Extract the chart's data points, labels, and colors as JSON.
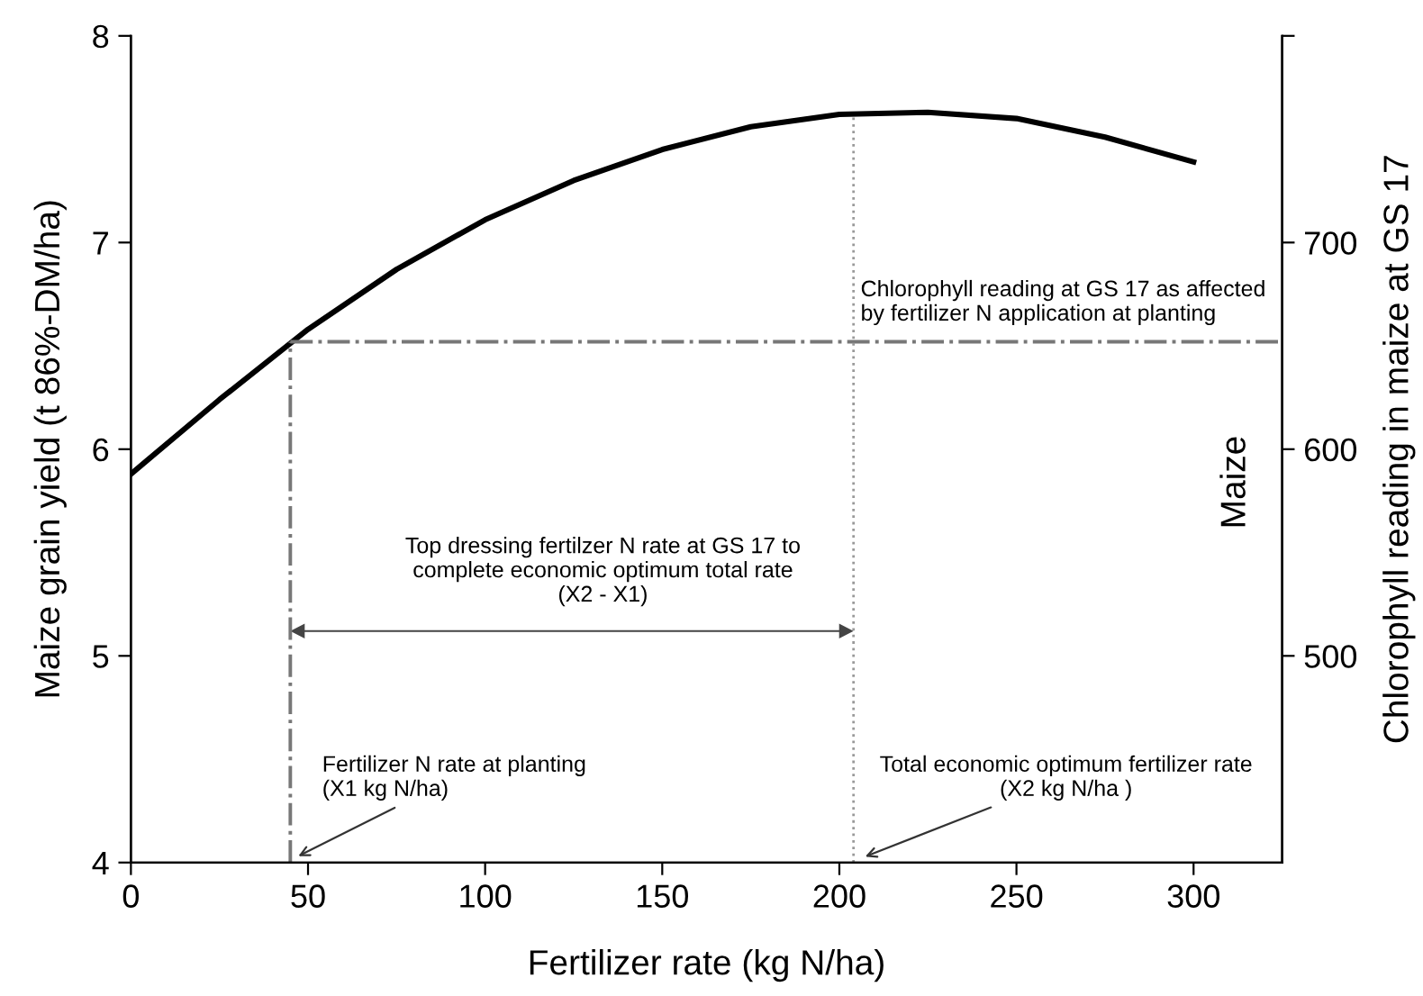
{
  "chart_data": {
    "type": "line",
    "xlabel": "Fertilizer rate (kg N/ha)",
    "ylabel": "Maize grain yield (t 86%-DM/ha)",
    "y2label": "Chlorophyll reading in maize at GS 17",
    "x": [
      0,
      25,
      50,
      75,
      100,
      125,
      150,
      175,
      200,
      225,
      250,
      275,
      300
    ],
    "series": [
      {
        "color": "#000000",
        "values": [
          5.88,
          6.24,
          6.58,
          6.87,
          7.11,
          7.3,
          7.45,
          7.56,
          7.62,
          7.63,
          7.6,
          7.51,
          7.39
        ]
      }
    ],
    "xlim": [
      0,
      325
    ],
    "xticks": [
      0,
      50,
      100,
      150,
      200,
      250,
      300
    ],
    "ylim": [
      4,
      8
    ],
    "yticks": [
      4,
      5,
      6,
      7,
      8
    ],
    "y2lim": [
      400,
      800
    ],
    "y2ticks": [
      {
        "value": 500,
        "label": "500"
      },
      {
        "value": 600,
        "label": "600"
      },
      {
        "value": 700,
        "label": "700"
      },
      {
        "value": 800,
        "label": null
      }
    ],
    "ref_lines": [
      {
        "axis": "y",
        "value": 6.52,
        "label": "Chlorophyll reading at GS 17 as affected\nby fertilizer N application at planting",
        "color": "#777777",
        "line_style": "dashdot"
      },
      {
        "axis": "x",
        "value": 45,
        "label": "Fertilizer N rate at planting\n(X1 kg N/ha)",
        "color": "#777777",
        "line_style": "dashdot"
      },
      {
        "axis": "x",
        "value": 204,
        "label": "Total economic optimum fertilizer rate\n(X2 kg N/ha )",
        "color": "#999999",
        "line_style": "dotted"
      }
    ],
    "annotations": [
      "Top dressing fertilzer N rate at GS 17 to\ncomplete economic optimum total rate\n(X2 - X1)",
      "Maize"
    ],
    "grid": false,
    "legend": false,
    "marker": "none",
    "line_style": "solid"
  }
}
